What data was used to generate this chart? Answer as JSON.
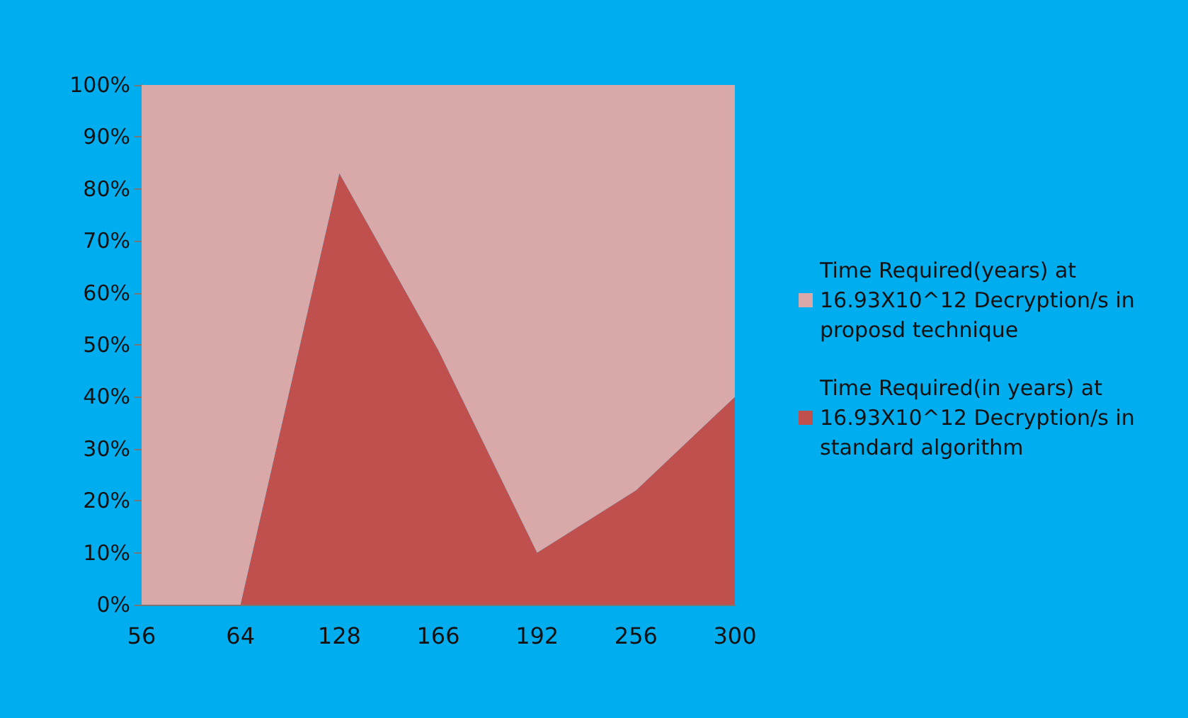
{
  "chart_data": {
    "type": "area",
    "stacked": true,
    "categories": [
      "56",
      "64",
      "128",
      "166",
      "192",
      "256",
      "300"
    ],
    "series": [
      {
        "name": "Time Required(in years) at 16.93X10^12 Decryption/s in standard algorithm",
        "color": "#c0504d",
        "values": [
          0,
          0,
          83,
          49,
          10,
          22,
          40
        ]
      },
      {
        "name": "Time Required(years) at 16.93X10^12 Decryption/s in proposd technique",
        "color": "#d9a8a8",
        "values": [
          100,
          100,
          17,
          51,
          90,
          78,
          60
        ]
      }
    ],
    "ylim": [
      0,
      100
    ],
    "yticks": [
      {
        "value": 0,
        "label": "0%"
      },
      {
        "value": 10,
        "label": "10%"
      },
      {
        "value": 20,
        "label": "20%"
      },
      {
        "value": 30,
        "label": "30%"
      },
      {
        "value": 40,
        "label": "40%"
      },
      {
        "value": 50,
        "label": "50%"
      },
      {
        "value": 60,
        "label": "60%"
      },
      {
        "value": 70,
        "label": "70%"
      },
      {
        "value": 80,
        "label": "80%"
      },
      {
        "value": 90,
        "label": "90%"
      },
      {
        "value": 100,
        "label": "100%"
      }
    ],
    "grid": false,
    "legend": "right"
  }
}
